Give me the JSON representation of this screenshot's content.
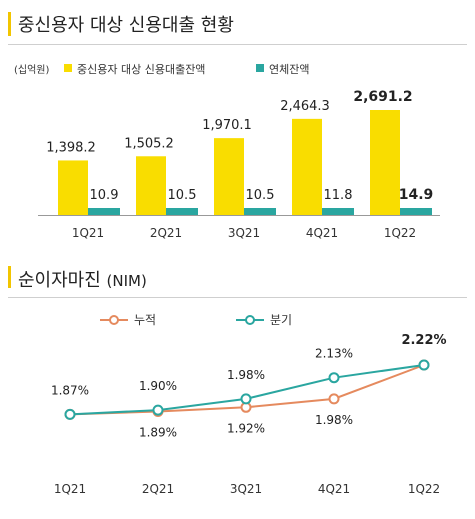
{
  "chart_data": [
    {
      "type": "bar",
      "title": "중신용자 대상 신용대출 현황",
      "unit": "(십억원)",
      "categories": [
        "1Q21",
        "2Q21",
        "3Q21",
        "4Q21",
        "1Q22"
      ],
      "series": [
        {
          "name": "중신용자 대상 신용대출잔액",
          "color": "#F9DD00",
          "values": [
            1398.2,
            1505.2,
            1970.1,
            2464.3,
            2691.2
          ],
          "labels": [
            "1,398.2",
            "1,505.2",
            "1,970.1",
            "2,464.3",
            "2,691.2"
          ]
        },
        {
          "name": "연체잔액",
          "color": "#2AA6A0",
          "values": [
            10.9,
            10.5,
            10.5,
            11.8,
            14.9
          ],
          "labels": [
            "10.9",
            "10.5",
            "10.5",
            "11.8",
            "14.9"
          ]
        }
      ],
      "highlight_last": true,
      "grid": false,
      "legend_position": "top-left"
    },
    {
      "type": "line",
      "title": "순이자마진",
      "title_suffix": "(NIM)",
      "categories": [
        "1Q21",
        "2Q21",
        "3Q21",
        "4Q21",
        "1Q22"
      ],
      "series": [
        {
          "name": "누적",
          "color": "#E58A5E",
          "values": [
            1.87,
            1.89,
            1.92,
            1.98,
            2.22
          ],
          "labels": [
            "1.87%",
            "1.89%",
            "1.92%",
            "1.98%",
            "2.22%"
          ]
        },
        {
          "name": "분기",
          "color": "#2AA6A0",
          "values": [
            1.87,
            1.9,
            1.98,
            2.13,
            2.22
          ],
          "labels": [
            "1.87%",
            "1.90%",
            "1.98%",
            "2.13%",
            "2.22%"
          ]
        }
      ],
      "highlight_last": true,
      "grid": false,
      "legend_position": "top-left"
    }
  ]
}
